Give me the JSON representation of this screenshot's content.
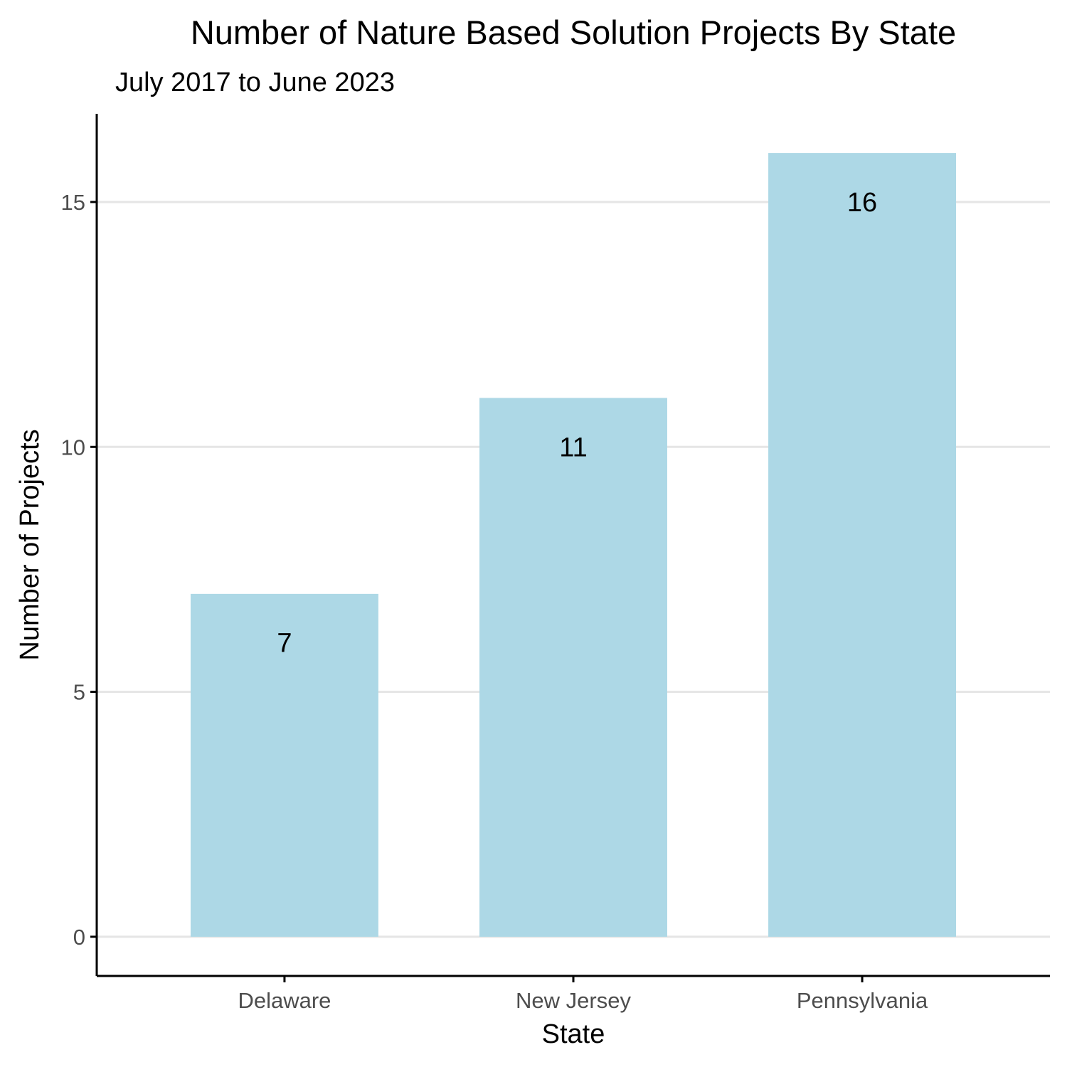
{
  "chart_data": {
    "type": "bar",
    "title": "Number of Nature Based Solution Projects By State",
    "subtitle": "July 2017 to June 2023",
    "xlabel": "State",
    "ylabel": "Number of Projects",
    "categories": [
      "Delaware",
      "New Jersey",
      "Pennsylvania"
    ],
    "values": [
      7,
      11,
      16
    ],
    "data_labels": [
      "7",
      "11",
      "16"
    ],
    "ylim": [
      -0.8,
      16.8
    ],
    "yticks": [
      0,
      5,
      10,
      15
    ],
    "grid": "horizontal major",
    "legend": "none",
    "colors": {
      "bar": "#add8e6",
      "grid": "#e5e5e5",
      "axis": "#000000",
      "tick_label": "#4d4d4d"
    }
  }
}
